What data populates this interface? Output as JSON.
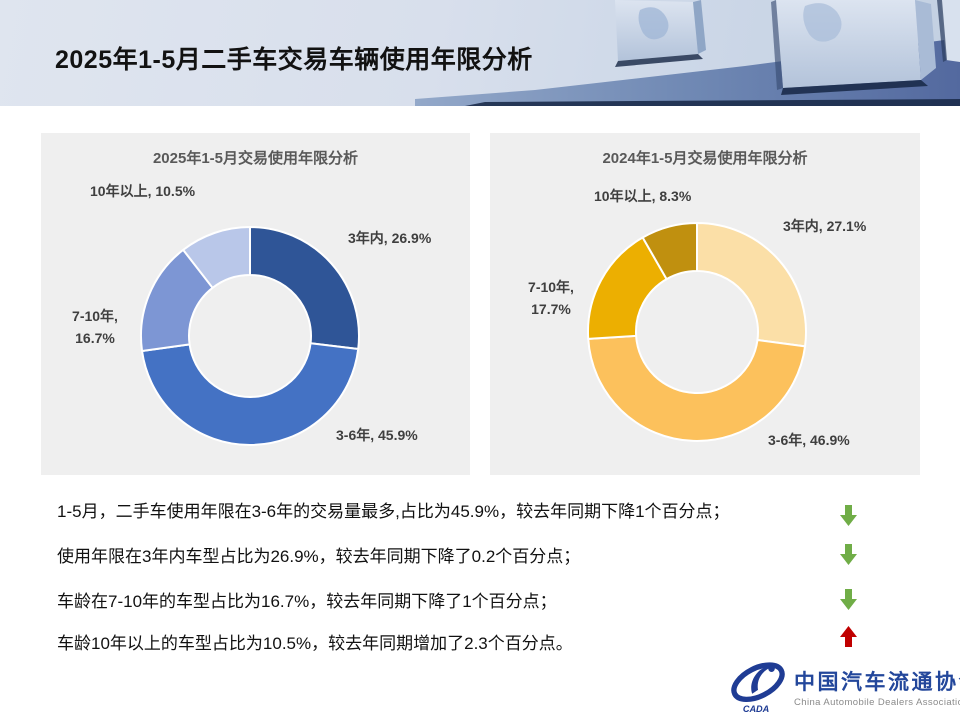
{
  "slide_title": "2025年1-5月二手车交易车辆使用年限分析",
  "chart_data": [
    {
      "type": "pie",
      "donut": true,
      "start": "12-oclock-clockwise",
      "title": "2025年1-5月交易使用年限分析",
      "categories": [
        "3年内",
        "3-6年",
        "7-10年",
        "10年以上"
      ],
      "values": [
        26.9,
        45.9,
        16.7,
        10.5
      ],
      "colors": [
        "#2F5597",
        "#4472C4",
        "#7D96D4",
        "#B9C7E9"
      ],
      "labels": {
        "three_in": "3年内, 26.9%",
        "three_six": "3-6年, 45.9%",
        "seven_ten_line1": "7-10年,",
        "seven_ten_line2": "16.7%",
        "ten_plus": "10年以上, 10.5%"
      }
    },
    {
      "type": "pie",
      "donut": true,
      "start": "12-oclock-clockwise",
      "title": "2024年1-5月交易使用年限分析",
      "categories": [
        "3年内",
        "3-6年",
        "7-10年",
        "10年以上"
      ],
      "values": [
        27.1,
        46.9,
        17.7,
        8.3
      ],
      "colors": [
        "#FBDFA7",
        "#FCC15C",
        "#ECAF01",
        "#C0900F"
      ],
      "labels": {
        "three_in": "3年内, 27.1%",
        "three_six": "3-6年, 46.9%",
        "seven_ten_line1": "7-10年,",
        "seven_ten_line2": "17.7%",
        "ten_plus": "10年以上, 8.3%"
      }
    }
  ],
  "notes": [
    {
      "text": "1-5月，二手车使用年限在3-6年的交易量最多,占比为45.9%，较去年同期下降1个百分点；",
      "arrow": "down"
    },
    {
      "text": "使用年限在3年内车型占比为26.9%，较去年同期下降了0.2个百分点；",
      "arrow": "down"
    },
    {
      "text": "车龄在7-10年的车型占比为16.7%，较去年同期下降了1个百分点；",
      "arrow": "down"
    },
    {
      "text": "车龄10年以上的车型占比为10.5%，较去年同期增加了2.3个百分点。",
      "arrow": "up"
    }
  ],
  "arrow_colors": {
    "down": "#70AD47",
    "up": "#C00000"
  },
  "logo": {
    "cn": "中国汽车流通协会",
    "en": "China Automobile Dealers Association",
    "mark": "CADA"
  }
}
